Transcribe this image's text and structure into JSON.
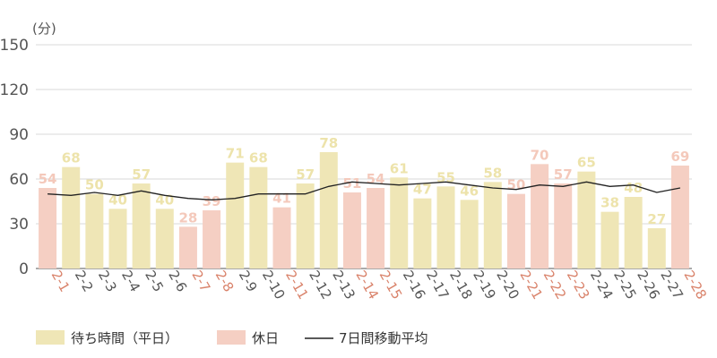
{
  "chart_data": {
    "type": "bar",
    "title": "",
    "xlabel": "",
    "ylabel": "(分)",
    "ylim": [
      0,
      150
    ],
    "yticks": [
      0,
      30,
      60,
      90,
      120,
      150
    ],
    "grid": true,
    "legend_position": "bottom-left",
    "categories": [
      "2-1",
      "2-2",
      "2-3",
      "2-4",
      "2-5",
      "2-6",
      "2-7",
      "2-8",
      "2-9",
      "2-10",
      "2-11",
      "2-12",
      "2-13",
      "2-14",
      "2-15",
      "2-16",
      "2-17",
      "2-18",
      "2-19",
      "2-20",
      "2-21",
      "2-22",
      "2-23",
      "2-24",
      "2-25",
      "2-26",
      "2-27",
      "2-28"
    ],
    "values": [
      54,
      68,
      50,
      40,
      57,
      40,
      28,
      39,
      71,
      68,
      41,
      57,
      78,
      51,
      54,
      61,
      47,
      55,
      46,
      58,
      50,
      70,
      57,
      65,
      38,
      48,
      27,
      69
    ],
    "day_type": [
      "holiday",
      "weekday",
      "weekday",
      "weekday",
      "weekday",
      "weekday",
      "holiday",
      "holiday",
      "weekday",
      "weekday",
      "holiday",
      "weekday",
      "weekday",
      "holiday",
      "holiday",
      "weekday",
      "weekday",
      "weekday",
      "weekday",
      "weekday",
      "holiday",
      "holiday",
      "holiday",
      "weekday",
      "weekday",
      "weekday",
      "weekday",
      "holiday"
    ],
    "moving_average": [
      50,
      49,
      51,
      49,
      52,
      49,
      47,
      46,
      47,
      50,
      50,
      50,
      55,
      58,
      57,
      56,
      57,
      58,
      56,
      54,
      53,
      56,
      55,
      58,
      55,
      56,
      51,
      54
    ],
    "legend": {
      "weekday": "待ち時間（平日）",
      "holiday": "休日",
      "moving_average": "7日間移動平均"
    },
    "colors": {
      "weekday_bar": "#efe6b6",
      "weekday_label": "#ede3ab",
      "holiday_bar": "#f5cfc3",
      "holiday_label": "#f4c9bb",
      "holiday_tick": "#d9826a",
      "weekday_tick": "#555555",
      "line": "#222222",
      "grid": "#d9d9d9",
      "axis_text": "#555555"
    }
  }
}
